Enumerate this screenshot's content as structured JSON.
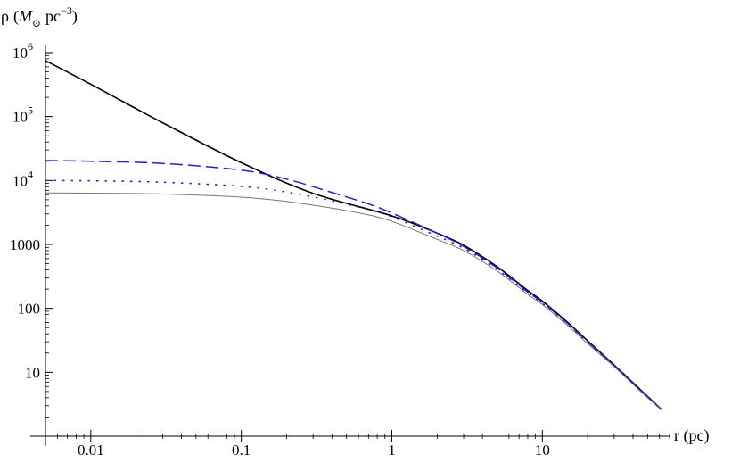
{
  "chart_data": {
    "type": "line",
    "title": "",
    "xlabel": "r (pc)",
    "ylabel": "ρ (M⊙ pc⁻³)",
    "ylabel_parts": {
      "rho": "ρ",
      "open": "(",
      "M": "M",
      "sun": "⊙",
      "pc": "pc",
      "exp": "−3",
      "close": ")"
    },
    "xscale": "log",
    "yscale": "log",
    "xlim": [
      0.005,
      70
    ],
    "ylim": [
      1,
      1000000
    ],
    "x_ticks": [
      {
        "value": 0.01,
        "label": "0.01"
      },
      {
        "value": 0.1,
        "label": "0.1"
      },
      {
        "value": 1,
        "label": "1"
      },
      {
        "value": 10,
        "label": "10"
      }
    ],
    "y_ticks": [
      {
        "value": 10,
        "label": "10"
      },
      {
        "value": 100,
        "label": "100"
      },
      {
        "value": 1000,
        "label": "1000"
      },
      {
        "value": 10000,
        "base": "10",
        "exp": "4"
      },
      {
        "value": 100000,
        "base": "10",
        "exp": "5"
      },
      {
        "value": 1000000,
        "base": "10",
        "exp": "6"
      }
    ],
    "grid": false,
    "legend": false,
    "series": [
      {
        "color": "#000000",
        "style": "solid",
        "width": 1.6,
        "x": [
          0.005,
          0.01,
          0.03,
          0.1,
          0.3,
          1,
          2,
          3,
          5,
          8,
          10,
          15,
          20,
          30,
          45,
          62
        ],
        "y": [
          750000,
          320000,
          80000,
          19000,
          6300,
          2800,
          1500,
          970,
          450,
          190,
          130,
          58,
          31,
          13,
          5.3,
          2.6
        ]
      },
      {
        "color": "#1f1fcc",
        "style": "dashed",
        "width": 1.5,
        "x": [
          0.005,
          0.01,
          0.03,
          0.1,
          0.2,
          0.4,
          0.7,
          1,
          2,
          3,
          5,
          8,
          10,
          15,
          20,
          30,
          45,
          62
        ],
        "y": [
          20500,
          20000,
          18500,
          14500,
          10500,
          6500,
          4300,
          3100,
          1500,
          930,
          430,
          180,
          125,
          56,
          30,
          12.8,
          5.2,
          2.6
        ]
      },
      {
        "color": "#1f1fcc",
        "style": "dotted",
        "width": 1.5,
        "x": [
          0.005,
          0.01,
          0.03,
          0.1,
          0.2,
          0.4,
          0.7,
          1,
          2,
          3,
          5,
          8,
          10,
          15,
          20,
          30,
          45,
          62
        ],
        "y": [
          10000,
          9900,
          9400,
          8100,
          6600,
          4800,
          3500,
          2700,
          1350,
          870,
          410,
          175,
          120,
          54,
          29,
          12.5,
          5.1,
          2.6
        ]
      },
      {
        "color": "#777777",
        "style": "solid",
        "width": 1.0,
        "x": [
          0.005,
          0.01,
          0.03,
          0.1,
          0.2,
          0.4,
          0.7,
          1,
          2,
          3,
          5,
          8,
          10,
          15,
          20,
          30,
          45,
          62
        ],
        "y": [
          6400,
          6350,
          6150,
          5500,
          4700,
          3700,
          2900,
          2300,
          1200,
          800,
          385,
          165,
          115,
          52,
          28,
          12.2,
          5.0,
          2.55
        ]
      }
    ]
  }
}
